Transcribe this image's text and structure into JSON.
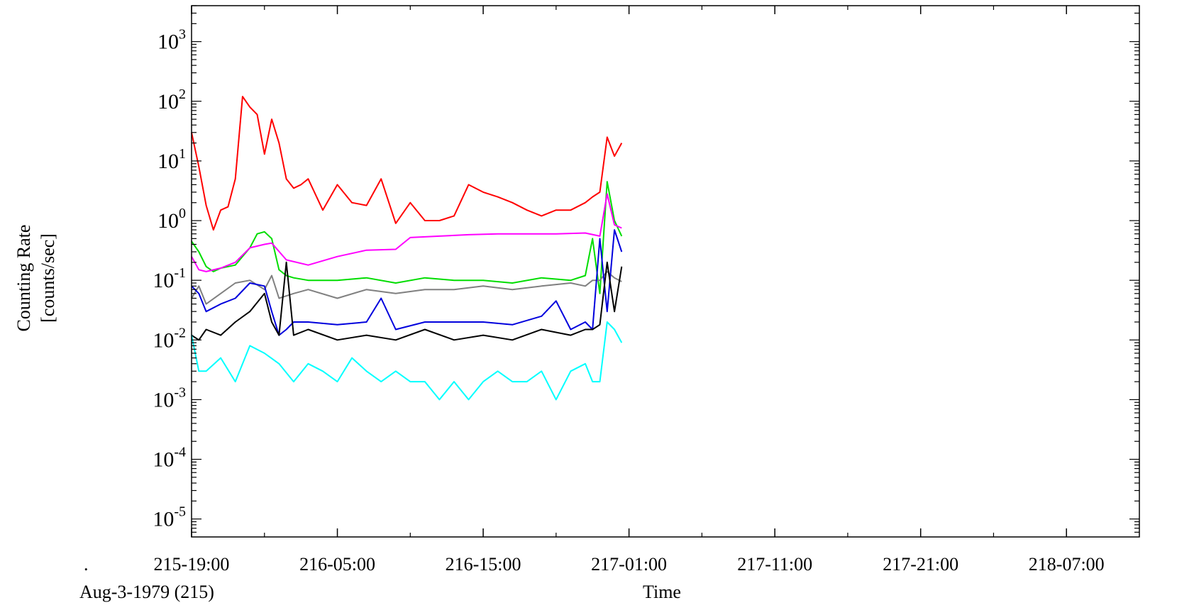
{
  "chart_data": {
    "type": "line",
    "scale": "log-y",
    "ylabel": [
      "Counting Rate",
      "[counts/sec]"
    ],
    "xlabel": "Time",
    "date_label": "Aug-3-1979 (215)",
    "corner_mark": ".",
    "xlim": [
      "215-19:00",
      "218-12:00"
    ],
    "ylim": [
      5e-06,
      4000
    ],
    "x_tick_labels": [
      "215-19:00",
      "216-05:00",
      "216-15:00",
      "217-01:00",
      "217-11:00",
      "217-21:00",
      "218-07:00"
    ],
    "y_tick_labels": [
      {
        "base": "10",
        "exp": "3",
        "value": 1000
      },
      {
        "base": "10",
        "exp": "2",
        "value": 100
      },
      {
        "base": "10",
        "exp": "1",
        "value": 10
      },
      {
        "base": "10",
        "exp": "0",
        "value": 1
      },
      {
        "base": "10",
        "exp": "-1",
        "value": 0.1
      },
      {
        "base": "10",
        "exp": "-2",
        "value": 0.01
      },
      {
        "base": "10",
        "exp": "-3",
        "value": 0.001
      },
      {
        "base": "10",
        "exp": "-4",
        "value": 0.0001
      },
      {
        "base": "10",
        "exp": "-5",
        "value": 1e-05
      }
    ],
    "grid": false,
    "series": [
      {
        "color": "#ff0000",
        "x": [
          "215-19:00",
          "215-19:30",
          "215-20:00",
          "215-20:30",
          "215-21:00",
          "215-21:30",
          "215-22:00",
          "215-22:30",
          "215-23:00",
          "215-23:30",
          "216-00:00",
          "216-00:30",
          "216-01:00",
          "216-01:30",
          "216-02:00",
          "216-02:30",
          "216-03:00",
          "216-04:00",
          "216-05:00",
          "216-06:00",
          "216-07:00",
          "216-08:00",
          "216-09:00",
          "216-10:00",
          "216-11:00",
          "216-12:00",
          "216-13:00",
          "216-14:00",
          "216-15:00",
          "216-16:00",
          "216-17:00",
          "216-18:00",
          "216-19:00",
          "216-20:00",
          "216-21:00",
          "216-22:00",
          "216-22:30",
          "216-23:00",
          "216-23:30",
          "217-00:00",
          "217-00:30"
        ],
        "y": [
          30,
          8,
          1.8,
          0.7,
          1.5,
          1.7,
          5,
          120,
          80,
          60,
          13,
          50,
          20,
          5,
          3.5,
          4,
          5,
          1.5,
          4,
          2,
          1.8,
          5,
          0.9,
          2,
          1,
          1,
          1.2,
          4,
          3,
          2.5,
          2,
          1.5,
          1.2,
          1.5,
          1.5,
          2,
          2.5,
          3,
          25,
          12,
          20
        ]
      },
      {
        "color": "#00dd00",
        "x": [
          "215-19:00",
          "215-19:30",
          "215-20:00",
          "215-20:30",
          "215-21:00",
          "215-22:00",
          "215-23:00",
          "215-23:30",
          "216-00:00",
          "216-00:30",
          "216-01:00",
          "216-01:30",
          "216-02:00",
          "216-03:00",
          "216-05:00",
          "216-07:00",
          "216-09:00",
          "216-11:00",
          "216-13:00",
          "216-15:00",
          "216-17:00",
          "216-19:00",
          "216-21:00",
          "216-22:00",
          "216-22:30",
          "216-23:00",
          "216-23:30",
          "217-00:00",
          "217-00:30"
        ],
        "y": [
          0.45,
          0.3,
          0.17,
          0.14,
          0.16,
          0.18,
          0.35,
          0.6,
          0.65,
          0.5,
          0.15,
          0.12,
          0.11,
          0.1,
          0.1,
          0.11,
          0.09,
          0.11,
          0.1,
          0.1,
          0.09,
          0.11,
          0.1,
          0.12,
          0.5,
          0.06,
          4.5,
          1,
          0.55
        ]
      },
      {
        "color": "#ff00ff",
        "x": [
          "215-19:00",
          "215-19:30",
          "215-20:00",
          "215-21:00",
          "215-22:00",
          "215-23:00",
          "216-00:00",
          "216-00:30",
          "216-01:30",
          "216-03:00",
          "216-05:00",
          "216-07:00",
          "216-09:00",
          "216-10:00",
          "216-12:00",
          "216-14:00",
          "216-16:00",
          "216-18:00",
          "216-20:00",
          "216-22:00",
          "216-23:00",
          "216-23:30",
          "217-00:00",
          "217-00:30"
        ],
        "y": [
          0.25,
          0.15,
          0.14,
          0.16,
          0.2,
          0.35,
          0.4,
          0.42,
          0.22,
          0.18,
          0.25,
          0.32,
          0.33,
          0.52,
          0.55,
          0.58,
          0.6,
          0.6,
          0.6,
          0.62,
          0.55,
          2.8,
          0.85,
          0.75
        ]
      },
      {
        "color": "#808080",
        "x": [
          "215-19:00",
          "215-19:30",
          "215-20:00",
          "215-21:00",
          "215-22:00",
          "215-23:00",
          "216-00:00",
          "216-00:30",
          "216-01:00",
          "216-02:00",
          "216-03:00",
          "216-05:00",
          "216-07:00",
          "216-09:00",
          "216-11:00",
          "216-13:00",
          "216-15:00",
          "216-17:00",
          "216-19:00",
          "216-21:00",
          "216-22:00",
          "216-22:30",
          "216-23:00",
          "216-23:30",
          "217-00:00",
          "217-00:30"
        ],
        "y": [
          0.05,
          0.08,
          0.04,
          0.06,
          0.09,
          0.1,
          0.07,
          0.12,
          0.05,
          0.06,
          0.07,
          0.05,
          0.07,
          0.06,
          0.07,
          0.07,
          0.08,
          0.07,
          0.08,
          0.09,
          0.08,
          0.1,
          0.1,
          0.14,
          0.11,
          0.095
        ]
      },
      {
        "color": "#0000dd",
        "x": [
          "215-19:00",
          "215-19:30",
          "215-20:00",
          "215-21:00",
          "215-22:00",
          "215-23:00",
          "216-00:00",
          "216-00:30",
          "216-01:00",
          "216-01:30",
          "216-02:00",
          "216-03:00",
          "216-05:00",
          "216-07:00",
          "216-08:00",
          "216-09:00",
          "216-11:00",
          "216-13:00",
          "216-15:00",
          "216-17:00",
          "216-19:00",
          "216-20:00",
          "216-21:00",
          "216-22:00",
          "216-22:30",
          "216-23:00",
          "216-23:30",
          "217-00:00",
          "217-00:30"
        ],
        "y": [
          0.08,
          0.06,
          0.03,
          0.04,
          0.05,
          0.09,
          0.08,
          0.03,
          0.012,
          0.015,
          0.02,
          0.02,
          0.018,
          0.02,
          0.05,
          0.015,
          0.02,
          0.02,
          0.02,
          0.018,
          0.025,
          0.045,
          0.015,
          0.02,
          0.015,
          0.5,
          0.03,
          0.7,
          0.3
        ]
      },
      {
        "color": "#000000",
        "x": [
          "215-19:00",
          "215-19:30",
          "215-20:00",
          "215-21:00",
          "215-22:00",
          "215-23:00",
          "216-00:00",
          "216-00:30",
          "216-01:00",
          "216-01:30",
          "216-02:00",
          "216-03:00",
          "216-05:00",
          "216-07:00",
          "216-09:00",
          "216-11:00",
          "216-13:00",
          "216-15:00",
          "216-17:00",
          "216-19:00",
          "216-21:00",
          "216-22:00",
          "216-22:30",
          "216-23:00",
          "216-23:30",
          "217-00:00",
          "217-00:30"
        ],
        "y": [
          0.012,
          0.01,
          0.015,
          0.012,
          0.02,
          0.03,
          0.06,
          0.02,
          0.012,
          0.2,
          0.012,
          0.015,
          0.01,
          0.012,
          0.01,
          0.015,
          0.01,
          0.012,
          0.01,
          0.015,
          0.012,
          0.015,
          0.015,
          0.018,
          0.2,
          0.03,
          0.17
        ]
      },
      {
        "color": "#00ffff",
        "x": [
          "215-19:00",
          "215-19:30",
          "215-20:00",
          "215-21:00",
          "215-22:00",
          "215-23:00",
          "216-00:00",
          "216-01:00",
          "216-02:00",
          "216-03:00",
          "216-04:00",
          "216-05:00",
          "216-06:00",
          "216-07:00",
          "216-08:00",
          "216-09:00",
          "216-10:00",
          "216-11:00",
          "216-12:00",
          "216-13:00",
          "216-14:00",
          "216-15:00",
          "216-16:00",
          "216-17:00",
          "216-18:00",
          "216-19:00",
          "216-20:00",
          "216-21:00",
          "216-22:00",
          "216-22:30",
          "216-23:00",
          "216-23:30",
          "217-00:00",
          "217-00:30"
        ],
        "y": [
          0.012,
          0.003,
          0.003,
          0.005,
          0.002,
          0.008,
          0.006,
          0.004,
          0.002,
          0.004,
          0.003,
          0.002,
          0.005,
          0.003,
          0.002,
          0.003,
          0.002,
          0.002,
          0.001,
          0.002,
          0.001,
          0.002,
          0.003,
          0.002,
          0.002,
          0.003,
          0.001,
          0.003,
          0.004,
          0.002,
          0.002,
          0.02,
          0.015,
          0.009
        ]
      }
    ]
  }
}
